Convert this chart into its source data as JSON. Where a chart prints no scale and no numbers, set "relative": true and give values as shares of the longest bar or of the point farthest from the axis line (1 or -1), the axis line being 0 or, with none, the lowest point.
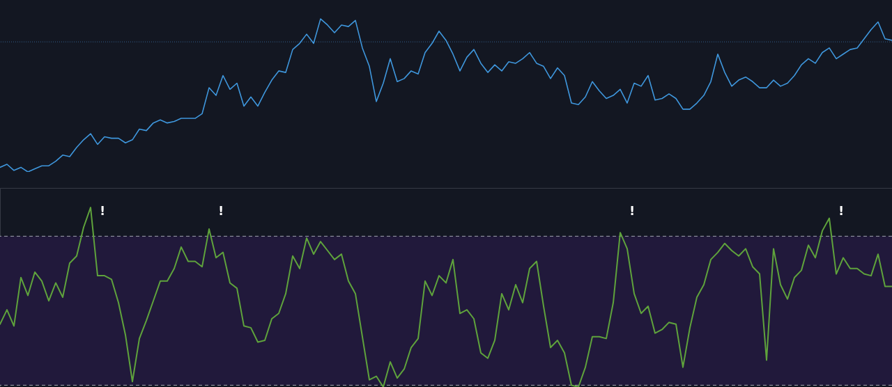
{
  "chart_data": [
    {
      "type": "line",
      "relative": true,
      "categories": [
        null,
        null,
        null,
        null,
        null,
        null,
        null,
        null,
        null,
        null,
        null,
        null,
        null,
        null,
        null,
        null,
        null,
        null,
        null,
        null,
        null,
        null,
        null,
        null,
        null,
        null,
        null,
        null,
        null,
        null,
        null,
        null,
        null,
        null,
        null,
        null,
        null,
        null,
        null,
        null,
        null,
        null,
        null,
        null,
        null,
        null,
        null,
        null,
        null,
        null,
        null,
        null,
        null,
        null,
        null,
        null,
        null,
        null,
        null,
        null,
        null,
        null,
        null,
        null,
        null,
        null,
        null,
        null,
        null,
        null,
        null,
        null,
        null,
        null,
        null,
        null,
        null,
        null,
        null,
        null,
        null,
        null,
        null,
        null,
        null,
        null,
        null,
        null,
        null,
        null,
        null,
        null,
        null,
        null,
        null,
        null,
        null,
        null,
        null,
        null,
        null,
        null,
        null,
        null,
        null,
        null,
        null,
        null,
        null,
        null,
        null,
        null,
        null,
        null,
        null,
        null,
        null,
        null,
        null,
        null,
        null,
        null,
        null,
        null,
        null,
        null,
        null,
        null,
        null
      ],
      "series": [
        {
          "color": "#3f97dd",
          "values": [
            0.03,
            0.05,
            0.01,
            0.03,
            0.0,
            0.02,
            0.04,
            0.04,
            0.07,
            0.11,
            0.1,
            0.16,
            0.21,
            0.25,
            0.18,
            0.23,
            0.22,
            0.22,
            0.19,
            0.21,
            0.28,
            0.27,
            0.32,
            0.34,
            0.32,
            0.33,
            0.35,
            0.35,
            0.35,
            0.38,
            0.55,
            0.5,
            0.63,
            0.54,
            0.58,
            0.43,
            0.49,
            0.43,
            0.52,
            0.6,
            0.66,
            0.65,
            0.8,
            0.84,
            0.9,
            0.84,
            1.0,
            0.96,
            0.91,
            0.96,
            0.95,
            0.99,
            0.81,
            0.69,
            0.46,
            0.58,
            0.74,
            0.59,
            0.61,
            0.66,
            0.64,
            0.78,
            0.84,
            0.92,
            0.86,
            0.77,
            0.66,
            0.75,
            0.8,
            0.71,
            0.65,
            0.7,
            0.66,
            0.72,
            0.71,
            0.74,
            0.78,
            0.71,
            0.69,
            0.61,
            0.68,
            0.63,
            0.45,
            0.44,
            0.49,
            0.59,
            0.53,
            0.48,
            0.5,
            0.54,
            0.45,
            0.58,
            0.56,
            0.63,
            0.47,
            0.48,
            0.51,
            0.48,
            0.41,
            0.41,
            0.45,
            0.5,
            0.59,
            0.77,
            0.65,
            0.56,
            0.6,
            0.62,
            0.59,
            0.55,
            0.55,
            0.6,
            0.56,
            0.58,
            0.63,
            0.7,
            0.74,
            0.71,
            0.78,
            0.81,
            0.74,
            0.77,
            0.8,
            0.81,
            0.87,
            0.93,
            0.98,
            0.87,
            0.86
          ]
        }
      ],
      "ref_lines": [
        {
          "axis": "y",
          "value": 0.85,
          "color": "#35628f",
          "line_style": "dotted"
        }
      ]
    },
    {
      "type": "line",
      "relative": true,
      "categories": [
        null,
        null,
        null,
        null,
        null,
        null,
        null,
        null,
        null,
        null,
        null,
        null,
        null,
        null,
        null,
        null,
        null,
        null,
        null,
        null,
        null,
        null,
        null,
        null,
        null,
        null,
        null,
        null,
        null,
        null,
        null,
        null,
        null,
        null,
        null,
        null,
        null,
        null,
        null,
        null,
        null,
        null,
        null,
        null,
        null,
        null,
        null,
        null,
        null,
        null,
        null,
        null,
        null,
        null,
        null,
        null,
        null,
        null,
        null,
        null,
        null,
        null,
        null,
        null,
        null,
        null,
        null,
        null,
        null,
        null,
        null,
        null,
        null,
        null,
        null,
        null,
        null,
        null,
        null,
        null,
        null,
        null,
        null,
        null,
        null,
        null,
        null,
        null,
        null,
        null,
        null,
        null,
        null,
        null,
        null,
        null,
        null,
        null,
        null,
        null,
        null,
        null,
        null,
        null,
        null,
        null,
        null,
        null,
        null,
        null,
        null,
        null,
        null,
        null,
        null,
        null,
        null,
        null,
        null,
        null,
        null,
        null,
        null,
        null,
        null,
        null,
        null,
        null,
        null
      ],
      "series": [
        {
          "color": "#5fa33c",
          "values": [
            0.35,
            0.43,
            0.34,
            0.61,
            0.51,
            0.64,
            0.59,
            0.48,
            0.58,
            0.5,
            0.69,
            0.73,
            0.89,
            1.0,
            0.62,
            0.62,
            0.6,
            0.47,
            0.29,
            0.03,
            0.27,
            0.37,
            0.48,
            0.59,
            0.59,
            0.66,
            0.78,
            0.7,
            0.7,
            0.67,
            0.88,
            0.72,
            0.75,
            0.58,
            0.55,
            0.34,
            0.33,
            0.25,
            0.26,
            0.38,
            0.41,
            0.52,
            0.73,
            0.66,
            0.83,
            0.74,
            0.81,
            0.76,
            0.71,
            0.74,
            0.59,
            0.52,
            0.28,
            0.04,
            0.06,
            0.0,
            0.14,
            0.05,
            0.1,
            0.22,
            0.27,
            0.59,
            0.51,
            0.62,
            0.58,
            0.71,
            0.41,
            0.43,
            0.38,
            0.19,
            0.16,
            0.26,
            0.52,
            0.43,
            0.57,
            0.47,
            0.66,
            0.7,
            0.45,
            0.22,
            0.26,
            0.19,
            0.01,
            0.0,
            0.11,
            0.28,
            0.28,
            0.27,
            0.47,
            0.86,
            0.77,
            0.52,
            0.41,
            0.45,
            0.3,
            0.32,
            0.36,
            0.35,
            0.11,
            0.33,
            0.5,
            0.57,
            0.71,
            0.75,
            0.8,
            0.76,
            0.73,
            0.77,
            0.67,
            0.63,
            0.15,
            0.77,
            0.57,
            0.49,
            0.61,
            0.65,
            0.79,
            0.72,
            0.87,
            0.94,
            0.63,
            0.72,
            0.66,
            0.66,
            0.63,
            0.62,
            0.74,
            0.56,
            0.56
          ]
        }
      ],
      "annotations": [
        "!",
        "!",
        "!",
        "!"
      ],
      "bands": [
        {
          "axis": "y",
          "from": 0.01,
          "to": 0.84,
          "color": "#21193b"
        }
      ],
      "ref_lines": [
        {
          "axis": "y",
          "value": 0.84,
          "color": "#a3a6af",
          "line_style": "dashed"
        },
        {
          "axis": "y",
          "value": 0.01,
          "color": "#a3a6af",
          "line_style": "dashed"
        }
      ]
    }
  ]
}
